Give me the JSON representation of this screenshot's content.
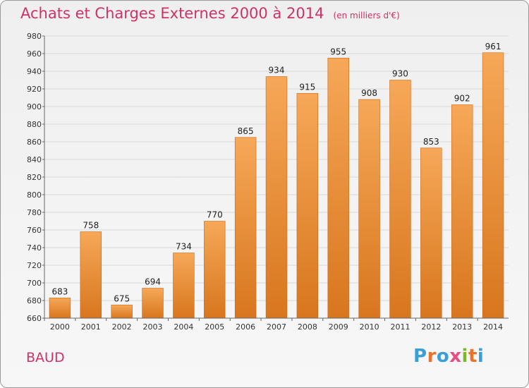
{
  "header": {
    "title": "Achats et Charges Externes 2000 à 2014",
    "unit": "(en milliers d'€)"
  },
  "footer": {
    "commune": "BAUD"
  },
  "logo": {
    "letters": [
      "P",
      "r",
      "o",
      "x",
      "i",
      "t",
      "i"
    ],
    "colors": [
      "#3a9fd8",
      "#e8732a",
      "#3a9fd8",
      "#e94b85",
      "#7bb928",
      "#e8732a",
      "#3a9fd8"
    ]
  },
  "chart_data": {
    "type": "bar",
    "categories": [
      "2000",
      "2001",
      "2002",
      "2003",
      "2004",
      "2005",
      "2006",
      "2007",
      "2008",
      "2009",
      "2010",
      "2011",
      "2012",
      "2013",
      "2014"
    ],
    "values": [
      683,
      758,
      675,
      694,
      734,
      770,
      865,
      934,
      915,
      955,
      908,
      930,
      853,
      902,
      961
    ],
    "title": "Achats et Charges Externes 2000 à 2014",
    "ylim": [
      660,
      980
    ],
    "yticks": [
      660,
      680,
      700,
      720,
      740,
      760,
      780,
      800,
      820,
      840,
      860,
      880,
      900,
      920,
      940,
      960,
      980
    ],
    "grid": true,
    "colors": {
      "bar_top": "#f6a858",
      "bar_bottom": "#d8761e",
      "bar_edge": "#c9681a",
      "grid": "#d8d8d8"
    }
  }
}
